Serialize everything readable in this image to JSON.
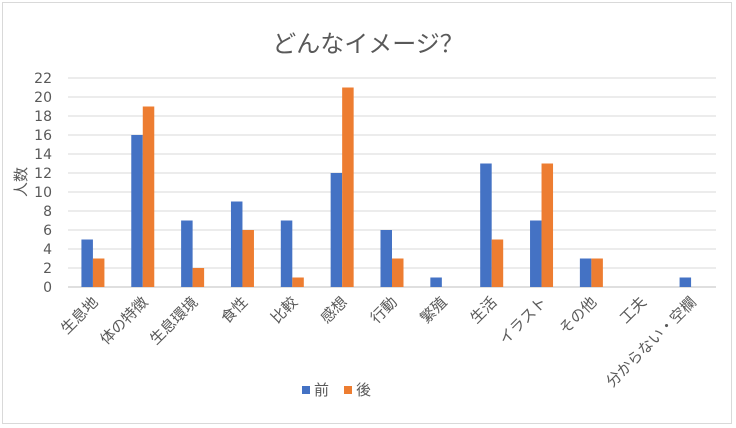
{
  "chart_data": {
    "type": "bar",
    "title": "どんなイメージ？",
    "ylabel": "人数",
    "xlabel": "",
    "ylim": [
      0,
      22
    ],
    "yticks": [
      0,
      2,
      4,
      6,
      8,
      10,
      12,
      14,
      16,
      18,
      20,
      22
    ],
    "grid": true,
    "legend_position": "bottom",
    "categories": [
      "生息地",
      "体の特徴",
      "生息環境",
      "食性",
      "比較",
      "感想",
      "行動",
      "繁殖",
      "生活",
      "イラスト",
      "その他",
      "工夫",
      "分からない・空欄"
    ],
    "series": [
      {
        "name": "前",
        "color": "#4472c4",
        "values": [
          5,
          16,
          7,
          9,
          7,
          12,
          6,
          1,
          13,
          7,
          3,
          0,
          1
        ]
      },
      {
        "name": "後",
        "color": "#ed7d31",
        "values": [
          3,
          19,
          2,
          6,
          1,
          21,
          3,
          0,
          5,
          13,
          3,
          0,
          0
        ]
      }
    ]
  }
}
